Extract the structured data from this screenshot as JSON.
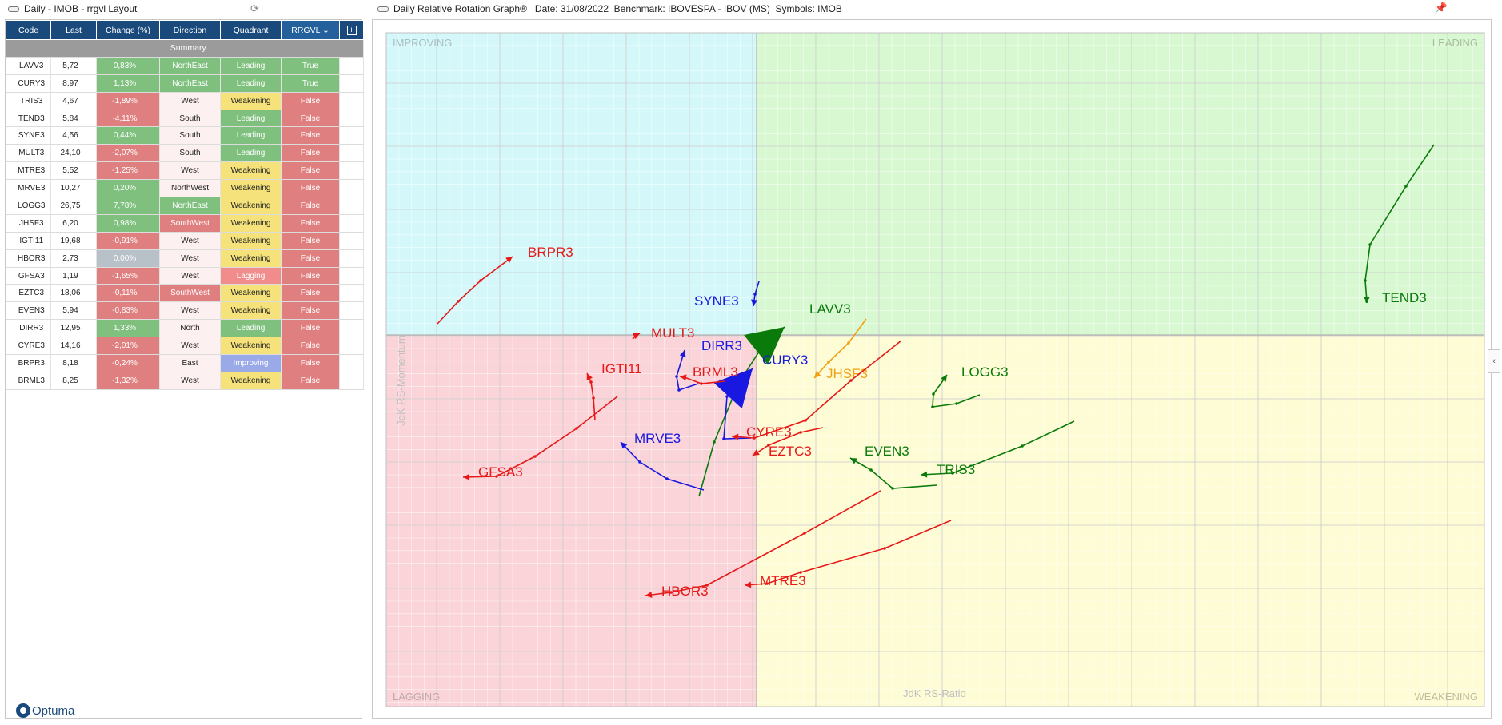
{
  "left_window": {
    "title": "Daily - IMOB - rrgvl Layout"
  },
  "right_window": {
    "title": "Daily Relative Rotation Graph®   Date: 31/08/2022  Benchmark: IBOVESPA - IBOV (MS)  Symbols: IMOB"
  },
  "table": {
    "headers": [
      "Code",
      "Last",
      "Change (%)",
      "Direction",
      "Quadrant",
      "RRGVL"
    ],
    "summary_label": "Summary",
    "rows": [
      {
        "code": "LAVV3",
        "last": "5,72",
        "change": "0,83%",
        "dir": "NorthEast",
        "quad": "Leading",
        "flag": "True"
      },
      {
        "code": "CURY3",
        "last": "8,97",
        "change": "1,13%",
        "dir": "NorthEast",
        "quad": "Leading",
        "flag": "True"
      },
      {
        "code": "TRIS3",
        "last": "4,67",
        "change": "-1,89%",
        "dir": "West",
        "quad": "Weakening",
        "flag": "False"
      },
      {
        "code": "TEND3",
        "last": "5,84",
        "change": "-4,11%",
        "dir": "South",
        "quad": "Leading",
        "flag": "False"
      },
      {
        "code": "SYNE3",
        "last": "4,56",
        "change": "0,44%",
        "dir": "South",
        "quad": "Leading",
        "flag": "False"
      },
      {
        "code": "MULT3",
        "last": "24,10",
        "change": "-2,07%",
        "dir": "South",
        "quad": "Leading",
        "flag": "False"
      },
      {
        "code": "MTRE3",
        "last": "5,52",
        "change": "-1,25%",
        "dir": "West",
        "quad": "Weakening",
        "flag": "False"
      },
      {
        "code": "MRVE3",
        "last": "10,27",
        "change": "0,20%",
        "dir": "NorthWest",
        "quad": "Weakening",
        "flag": "False"
      },
      {
        "code": "LOGG3",
        "last": "26,75",
        "change": "7,78%",
        "dir": "NorthEast",
        "quad": "Weakening",
        "flag": "False"
      },
      {
        "code": "JHSF3",
        "last": "6,20",
        "change": "0,98%",
        "dir": "SouthWest",
        "quad": "Weakening",
        "flag": "False"
      },
      {
        "code": "IGTI11",
        "last": "19,68",
        "change": "-0,91%",
        "dir": "West",
        "quad": "Weakening",
        "flag": "False"
      },
      {
        "code": "HBOR3",
        "last": "2,73",
        "change": "0,00%",
        "dir": "West",
        "quad": "Weakening",
        "flag": "False"
      },
      {
        "code": "GFSA3",
        "last": "1,19",
        "change": "-1,65%",
        "dir": "West",
        "quad": "Lagging",
        "flag": "False"
      },
      {
        "code": "EZTC3",
        "last": "18,06",
        "change": "-0,11%",
        "dir": "SouthWest",
        "quad": "Weakening",
        "flag": "False"
      },
      {
        "code": "EVEN3",
        "last": "5,94",
        "change": "-0,83%",
        "dir": "West",
        "quad": "Weakening",
        "flag": "False"
      },
      {
        "code": "DIRR3",
        "last": "12,95",
        "change": "1,33%",
        "dir": "North",
        "quad": "Leading",
        "flag": "False"
      },
      {
        "code": "CYRE3",
        "last": "14,16",
        "change": "-2,01%",
        "dir": "West",
        "quad": "Weakening",
        "flag": "False"
      },
      {
        "code": "BRPR3",
        "last": "8,18",
        "change": "-0,24%",
        "dir": "East",
        "quad": "Improving",
        "flag": "False"
      },
      {
        "code": "BRML3",
        "last": "8,25",
        "change": "-1,32%",
        "dir": "West",
        "quad": "Weakening",
        "flag": "False"
      }
    ]
  },
  "logo": {
    "text": "Optuma"
  },
  "chart_data": {
    "type": "scatter",
    "xlabel": "JdK RS-Ratio",
    "ylabel": "JdK RS-Momentum",
    "quadrant_labels": {
      "top_left": "IMPROVING",
      "top_right": "LEADING",
      "bottom_left": "LAGGING",
      "bottom_right": "WEAKENING"
    },
    "colors": {
      "improving": "#d4f8fa",
      "leading": "#d8f8d2",
      "lagging": "#fad4d8",
      "weakening": "#fdfcd4",
      "grid": "#c9c9c9",
      "red": "#e81818",
      "green": "#0a7a0a",
      "blue": "#1818e0",
      "orange": "#f0a010"
    },
    "series": [
      {
        "name": "TEND3",
        "color": "green",
        "tail": [
          [
            1792,
            180
          ],
          [
            1757,
            232
          ],
          [
            1712,
            305
          ],
          [
            1706,
            350
          ],
          [
            1708,
            376
          ],
          [
            1708,
            378
          ]
        ],
        "label": [
          1727,
          377
        ]
      },
      {
        "name": "LOGG3",
        "color": "green",
        "tail": [
          [
            1224,
            493
          ],
          [
            1195,
            504
          ],
          [
            1165,
            508
          ],
          [
            1166,
            492
          ],
          [
            1183,
            468
          ]
        ],
        "label": [
          1201,
          470
        ]
      },
      {
        "name": "EVEN3",
        "color": "green",
        "tail": [
          [
            1170,
            606
          ],
          [
            1115,
            610
          ],
          [
            1088,
            587
          ],
          [
            1062,
            572
          ]
        ],
        "label": [
          1080,
          569
        ]
      },
      {
        "name": "TRIS3",
        "color": "green",
        "tail": [
          [
            1342,
            526
          ],
          [
            1277,
            557
          ],
          [
            1190,
            591
          ],
          [
            1150,
            593
          ]
        ],
        "label": [
          1170,
          592
        ]
      },
      {
        "name": "LAVV3",
        "color": "green",
        "tail": [
          [
            873,
            620
          ],
          [
            892,
            552
          ],
          [
            923,
            478
          ],
          [
            955,
            428
          ],
          [
            980,
            408
          ]
        ],
        "label": [
          1011,
          391
        ],
        "head": true
      },
      {
        "name": "JHSF3",
        "color": "orange",
        "tail": [
          [
            1082,
            398
          ],
          [
            1060,
            428
          ],
          [
            1035,
            452
          ],
          [
            1017,
            472
          ]
        ],
        "label": [
          1032,
          472
        ]
      },
      {
        "name": "CURY3",
        "color": "blue",
        "tail": [
          [
            938,
            547
          ],
          [
            904,
            548
          ],
          [
            908,
            495
          ],
          [
            940,
            460
          ]
        ],
        "label": [
          952,
          455
        ],
        "head": true
      },
      {
        "name": "SYNE3",
        "color": "blue",
        "tail": [
          [
            948,
            351
          ],
          [
            943,
            367
          ],
          [
            941,
            382
          ]
        ],
        "label": [
          867,
          381
        ]
      },
      {
        "name": "DIRR3",
        "color": "blue",
        "tail": [
          [
            872,
            479
          ],
          [
            848,
            487
          ],
          [
            845,
            470
          ],
          [
            855,
            437
          ]
        ],
        "label": [
          876,
          437
        ]
      },
      {
        "name": "MRVE3",
        "color": "blue",
        "tail": [
          [
            879,
            612
          ],
          [
            833,
            598
          ],
          [
            799,
            577
          ],
          [
            775,
            552
          ]
        ],
        "label": [
          792,
          553
        ]
      },
      {
        "name": "MULT3",
        "color": "red",
        "tail": [
          [
            790,
            423
          ],
          [
            795,
            418
          ],
          [
            799,
            416
          ]
        ],
        "label": [
          813,
          421
        ]
      },
      {
        "name": "BRML3",
        "color": "red",
        "tail": [
          [
            905,
            476
          ],
          [
            876,
            479
          ],
          [
            855,
            471
          ],
          [
            849,
            470
          ]
        ],
        "label": [
          865,
          470
        ]
      },
      {
        "name": "IGTI11",
        "color": "red",
        "tail": [
          [
            743,
            525
          ],
          [
            741,
            497
          ],
          [
            738,
            477
          ],
          [
            733,
            466
          ]
        ],
        "label": [
          751,
          466
        ]
      },
      {
        "name": "BRPR3",
        "color": "red",
        "tail": [
          [
            546,
            404
          ],
          [
            572,
            376
          ],
          [
            600,
            350
          ],
          [
            640,
            320
          ]
        ],
        "label": [
          659,
          320
        ]
      },
      {
        "name": "GFSA3",
        "color": "red",
        "tail": [
          [
            771,
            495
          ],
          [
            720,
            535
          ],
          [
            668,
            570
          ],
          [
            620,
            595
          ],
          [
            578,
            596
          ]
        ],
        "label": [
          597,
          595
        ]
      },
      {
        "name": "CYRE3",
        "color": "red",
        "tail": [
          [
            1126,
            425
          ],
          [
            1063,
            475
          ],
          [
            1006,
            525
          ],
          [
            942,
            547
          ],
          [
            914,
            545
          ]
        ],
        "label": [
          932,
          545
        ]
      },
      {
        "name": "EZTC3",
        "color": "red",
        "tail": [
          [
            1028,
            534
          ],
          [
            1000,
            540
          ],
          [
            960,
            556
          ],
          [
            940,
            569
          ]
        ],
        "label": [
          960,
          569
        ]
      },
      {
        "name": "HBOR3",
        "color": "red",
        "tail": [
          [
            1100,
            613
          ],
          [
            1005,
            666
          ],
          [
            883,
            731
          ],
          [
            838,
            740
          ],
          [
            806,
            744
          ]
        ],
        "label": [
          826,
          744
        ]
      },
      {
        "name": "MTRE3",
        "color": "red",
        "tail": [
          [
            1188,
            650
          ],
          [
            1105,
            685
          ],
          [
            1000,
            715
          ],
          [
            958,
            729
          ],
          [
            930,
            731
          ]
        ],
        "label": [
          949,
          731
        ]
      }
    ]
  }
}
